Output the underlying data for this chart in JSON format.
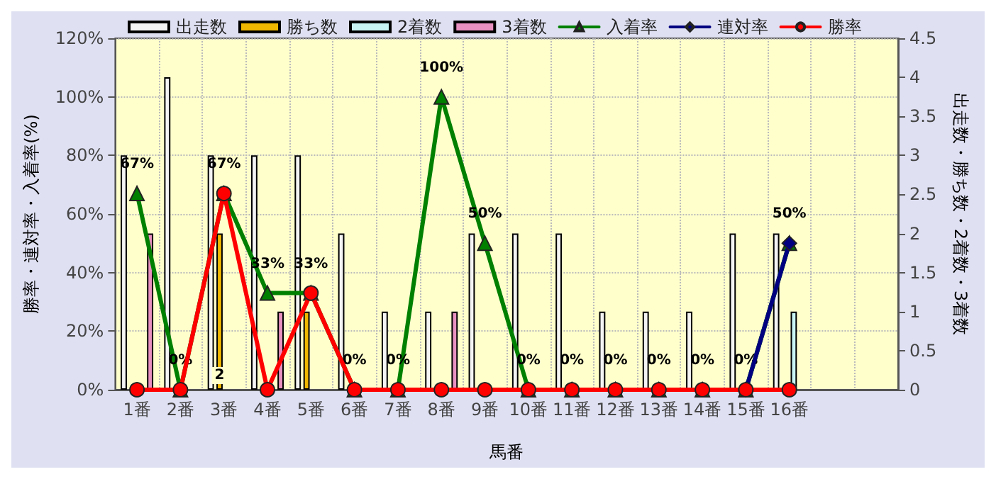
{
  "chart_data": {
    "type": "bar",
    "categories": [
      "1番",
      "2番",
      "3番",
      "4番",
      "5番",
      "6番",
      "7番",
      "8番",
      "9番",
      "10番",
      "11番",
      "12番",
      "13番",
      "14番",
      "15番",
      "16番",
      null,
      null
    ],
    "xlabel": "馬番",
    "ylabel": "勝率・連対率・入着率(%)",
    "y2label": "出走数・勝ち数・2着数・3着数",
    "ylim": [
      0,
      120
    ],
    "yticks": [
      {
        "value": 0,
        "label": "0%"
      },
      {
        "value": 20,
        "label": "20%"
      },
      {
        "value": 40,
        "label": "40%"
      },
      {
        "value": 60,
        "label": "60%"
      },
      {
        "value": 80,
        "label": "80%"
      },
      {
        "value": 100,
        "label": "100%"
      },
      {
        "value": 120,
        "label": "120%"
      }
    ],
    "y2lim": [
      0,
      4.5
    ],
    "y2ticks": [
      0,
      0.5,
      1,
      1.5,
      2,
      2.5,
      3,
      3.5,
      4,
      4.5
    ],
    "grid": true,
    "legend": "top",
    "series": [
      {
        "name": "出走数",
        "axis": "y2",
        "color": "#f4f4f4",
        "values": [
          3,
          4,
          3,
          3,
          3,
          2,
          1,
          1,
          2,
          2,
          2,
          1,
          1,
          1,
          2,
          2,
          null,
          null
        ]
      },
      {
        "name": "勝ち数",
        "axis": "y2",
        "color": "#f0b800",
        "values": [
          0,
          0,
          2,
          0,
          1,
          0,
          0,
          0,
          0,
          0,
          0,
          0,
          0,
          0,
          0,
          0,
          null,
          null
        ],
        "value_labels": [
          null,
          null,
          "2",
          null,
          null,
          null,
          null,
          null,
          null,
          null,
          null,
          null,
          null,
          null,
          null,
          null,
          null,
          null
        ]
      },
      {
        "name": "2着数",
        "axis": "y2",
        "color": "#c8f4f4",
        "values": [
          0,
          0,
          0,
          0,
          0,
          0,
          0,
          0,
          0,
          0,
          0,
          0,
          0,
          0,
          0,
          1,
          null,
          null
        ]
      },
      {
        "name": "3着数",
        "axis": "y2",
        "color": "#e890c0",
        "values": [
          2,
          0,
          0,
          1,
          0,
          0,
          0,
          1,
          0,
          0,
          0,
          0,
          0,
          0,
          0,
          0,
          null,
          null
        ]
      },
      {
        "name": "入着率",
        "type": "line",
        "color": "#008000",
        "marker": "triangle",
        "values": [
          67,
          0,
          67,
          33,
          33,
          0,
          0,
          100,
          50,
          0,
          0,
          0,
          0,
          0,
          0,
          50,
          null,
          null
        ],
        "value_labels": [
          "67%",
          "0%",
          "67%",
          "33%",
          "33%",
          "0%",
          "0%",
          "100%",
          "50%",
          "0%",
          "0%",
          "0%",
          "0%",
          "0%",
          "0%",
          "50%",
          null,
          null
        ]
      },
      {
        "name": "連対率",
        "type": "line",
        "color": "#000080",
        "marker": "diamond",
        "values": [
          null,
          null,
          null,
          null,
          null,
          null,
          null,
          null,
          null,
          null,
          null,
          null,
          null,
          null,
          0,
          50,
          null,
          null
        ]
      },
      {
        "name": "勝率",
        "type": "line",
        "color": "#ff0000",
        "marker": "circle",
        "values": [
          0,
          0,
          67,
          0,
          33,
          0,
          0,
          0,
          0,
          0,
          0,
          0,
          0,
          0,
          0,
          0,
          null,
          null
        ]
      }
    ]
  }
}
